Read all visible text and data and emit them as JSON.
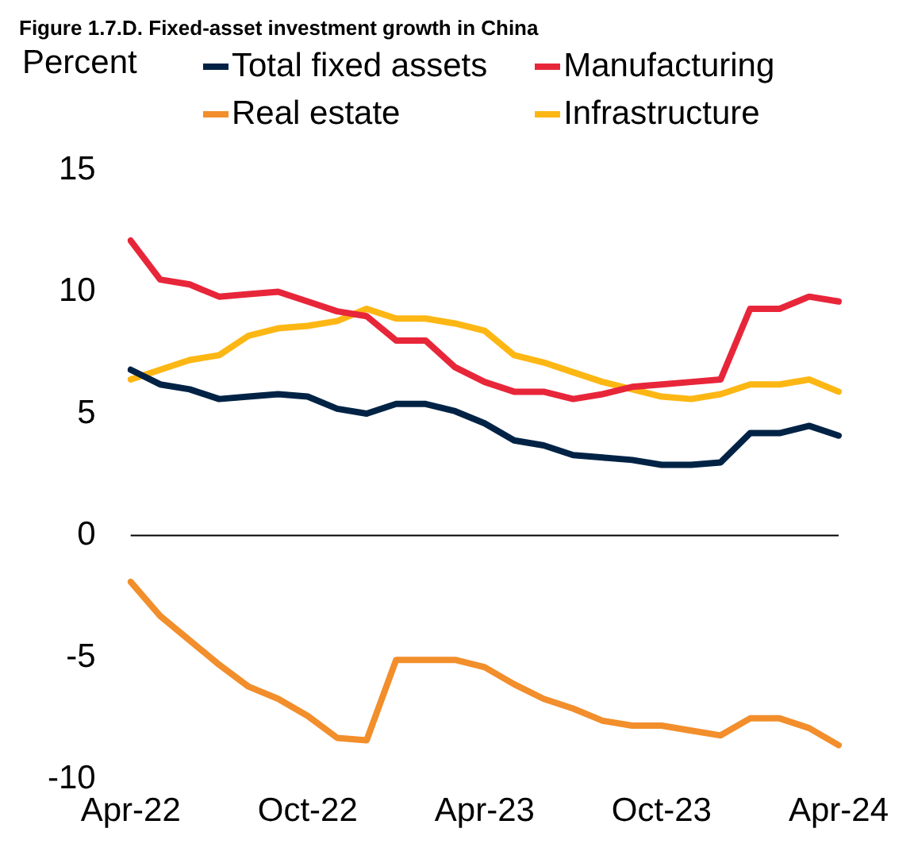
{
  "chart_data": {
    "type": "line",
    "title": "Figure 1.7.D. Fixed-asset investment growth in China",
    "ylabel": "Percent",
    "categories": [
      "Apr-22",
      null,
      null,
      null,
      null,
      null,
      "Oct-22",
      null,
      null,
      null,
      null,
      null,
      "Apr-23",
      null,
      null,
      null,
      null,
      null,
      "Oct-23",
      null,
      null,
      null,
      null,
      null,
      "Apr-24"
    ],
    "series": [
      {
        "name": "Total fixed assets",
        "color": "#002345",
        "values": [
          6.8,
          6.2,
          6.0,
          5.6,
          5.7,
          5.8,
          5.7,
          5.2,
          5.0,
          5.4,
          5.4,
          5.1,
          4.6,
          3.9,
          3.7,
          3.3,
          3.2,
          3.1,
          2.9,
          2.9,
          3.0,
          4.2,
          4.2,
          4.5,
          4.1
        ]
      },
      {
        "name": "Manufacturing",
        "color": "#e8263a",
        "values": [
          12.1,
          10.5,
          10.3,
          9.8,
          9.9,
          10.0,
          9.6,
          9.2,
          9.0,
          8.0,
          8.0,
          6.9,
          6.3,
          5.9,
          5.9,
          5.6,
          5.8,
          6.1,
          6.2,
          6.3,
          6.4,
          9.3,
          9.3,
          9.8,
          9.6
        ]
      },
      {
        "name": "Real estate",
        "color": "#f28e2b",
        "values": [
          -1.9,
          -3.3,
          -4.3,
          -5.3,
          -6.2,
          -6.7,
          -7.4,
          -8.3,
          -8.4,
          -5.1,
          -5.1,
          -5.1,
          -5.4,
          -6.1,
          -6.7,
          -7.1,
          -7.6,
          -7.8,
          -7.8,
          -8.0,
          -8.2,
          -7.5,
          -7.5,
          -7.9,
          -8.6
        ]
      },
      {
        "name": "Infrastructure",
        "color": "#fdb714",
        "values": [
          6.4,
          6.8,
          7.2,
          7.4,
          8.2,
          8.5,
          8.6,
          8.8,
          9.3,
          8.9,
          8.9,
          8.7,
          8.4,
          7.4,
          7.1,
          6.7,
          6.3,
          6.0,
          5.7,
          5.6,
          5.8,
          6.2,
          6.2,
          6.4,
          5.9
        ]
      }
    ],
    "ref_lines": [
      {
        "axis": "y",
        "value": 0,
        "color": "#000000"
      }
    ],
    "ylim": [
      -10,
      15
    ],
    "yticks": [
      -10,
      -5,
      0,
      5,
      10,
      15
    ],
    "grid": false,
    "legend": "top",
    "marker": "none",
    "line_style": "solid"
  }
}
